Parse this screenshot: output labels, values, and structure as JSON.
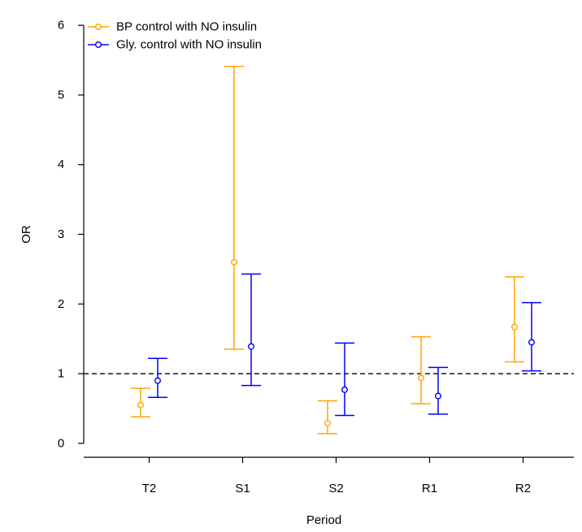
{
  "chart_data": {
    "type": "scatter",
    "subtype": "error-bar",
    "title": "",
    "xlabel": "Period",
    "ylabel": "OR",
    "categories": [
      "T2",
      "S1",
      "S2",
      "R1",
      "R2"
    ],
    "ylim": [
      -0.2,
      6.2
    ],
    "yticks": [
      0,
      1,
      2,
      3,
      4,
      5,
      6
    ],
    "reference_line": {
      "y": 1,
      "style": "dashed",
      "color": "#000000"
    },
    "grid": false,
    "legend": {
      "position": "top-left"
    },
    "series": [
      {
        "name": "BP control with NO insulin",
        "color": "#FFA500",
        "points": [
          {
            "category": "T2",
            "value": 0.55,
            "lower": 0.38,
            "upper": 0.79
          },
          {
            "category": "S1",
            "value": 2.6,
            "lower": 1.35,
            "upper": 5.41
          },
          {
            "category": "S2",
            "value": 0.29,
            "lower": 0.14,
            "upper": 0.61
          },
          {
            "category": "R1",
            "value": 0.94,
            "lower": 0.57,
            "upper": 1.53
          },
          {
            "category": "R2",
            "value": 1.67,
            "lower": 1.17,
            "upper": 2.39
          }
        ]
      },
      {
        "name": "Gly. control with NO insulin",
        "color": "#0000FF",
        "points": [
          {
            "category": "T2",
            "value": 0.9,
            "lower": 0.66,
            "upper": 1.22
          },
          {
            "category": "S1",
            "value": 1.39,
            "lower": 0.83,
            "upper": 2.43
          },
          {
            "category": "S2",
            "value": 0.77,
            "lower": 0.4,
            "upper": 1.44
          },
          {
            "category": "R1",
            "value": 0.68,
            "lower": 0.42,
            "upper": 1.09
          },
          {
            "category": "R2",
            "value": 1.45,
            "lower": 1.04,
            "upper": 2.02
          }
        ]
      }
    ]
  }
}
